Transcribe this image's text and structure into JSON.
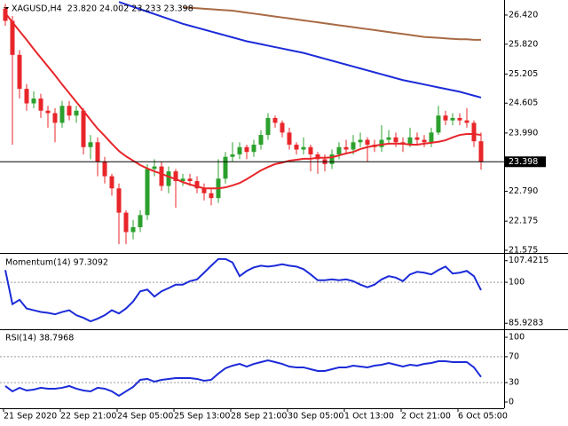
{
  "chart_data": [
    {
      "type": "candlestick",
      "title": "XAGUSD,H4  23.820 24.002 23.233 23.398",
      "categories": [
        "21 Sep 2020",
        null,
        null,
        null,
        null,
        null,
        null,
        null,
        "22 Sep 21:00",
        null,
        null,
        null,
        null,
        null,
        null,
        null,
        "24 Sep 05:00",
        null,
        null,
        null,
        null,
        null,
        null,
        null,
        "25 Sep 13:00",
        null,
        null,
        null,
        null,
        null,
        null,
        null,
        "28 Sep 21:00",
        null,
        null,
        null,
        null,
        null,
        null,
        null,
        "30 Sep 05:00",
        null,
        null,
        null,
        null,
        null,
        null,
        null,
        "1 Oct 13:00",
        null,
        null,
        null,
        null,
        null,
        null,
        null,
        "2 Oct 21:00",
        null,
        null,
        null,
        null,
        null,
        null,
        null,
        "6 Oct 05:00",
        null,
        null,
        null
      ],
      "open": [
        26.55,
        26.3,
        25.6,
        24.9,
        24.6,
        24.7,
        24.45,
        24.4,
        24.2,
        24.55,
        24.35,
        24.45,
        23.7,
        23.8,
        23.4,
        23.1,
        22.85,
        22.35,
        21.95,
        22.05,
        22.3,
        23.25,
        23.3,
        22.9,
        23.2,
        23.0,
        23.05,
        23.0,
        22.85,
        22.75,
        22.65,
        23.05,
        23.5,
        23.55,
        23.7,
        23.6,
        23.75,
        23.95,
        24.3,
        24.2,
        24.0,
        23.75,
        23.65,
        23.7,
        23.55,
        23.45,
        23.35,
        23.55,
        23.7,
        23.65,
        23.8,
        23.85,
        23.75,
        23.7,
        23.85,
        23.9,
        23.8,
        23.75,
        23.9,
        23.85,
        23.8,
        24.0,
        24.35,
        24.25,
        24.3,
        24.25,
        24.2,
        23.82
      ],
      "high": [
        26.65,
        26.4,
        25.7,
        25.0,
        24.85,
        24.8,
        24.55,
        24.5,
        24.65,
        24.65,
        24.55,
        24.5,
        23.95,
        23.9,
        23.5,
        23.15,
        22.95,
        22.4,
        22.2,
        22.4,
        23.35,
        23.45,
        23.4,
        23.3,
        23.25,
        23.15,
        23.15,
        23.1,
        22.95,
        22.85,
        23.45,
        23.6,
        23.8,
        23.8,
        23.75,
        23.85,
        24.05,
        24.4,
        24.35,
        24.25,
        24.1,
        23.8,
        23.9,
        23.75,
        23.6,
        23.55,
        23.65,
        23.8,
        23.85,
        23.95,
        24.0,
        23.9,
        23.85,
        24.15,
        24.05,
        24.0,
        23.9,
        24.1,
        24.0,
        23.95,
        24.1,
        24.55,
        24.45,
        24.4,
        24.4,
        24.5,
        24.25,
        24.002
      ],
      "low": [
        26.2,
        23.75,
        24.7,
        24.45,
        24.5,
        24.3,
        24.1,
        23.8,
        24.1,
        24.25,
        24.2,
        23.55,
        23.45,
        23.1,
        22.95,
        22.7,
        21.7,
        21.7,
        21.8,
        21.95,
        22.2,
        23.1,
        22.8,
        22.75,
        22.45,
        22.9,
        22.9,
        22.75,
        22.6,
        22.5,
        22.55,
        22.95,
        23.4,
        23.45,
        23.45,
        23.5,
        23.65,
        23.85,
        24.1,
        23.9,
        23.65,
        23.55,
        23.55,
        23.2,
        23.15,
        23.2,
        23.25,
        23.45,
        23.55,
        23.55,
        23.7,
        23.4,
        23.6,
        23.6,
        23.75,
        23.7,
        23.6,
        23.7,
        23.75,
        23.7,
        23.7,
        23.95,
        24.15,
        24.15,
        24.15,
        24.1,
        23.7,
        23.233
      ],
      "close": [
        26.3,
        25.6,
        24.9,
        24.6,
        24.7,
        24.45,
        24.4,
        24.2,
        24.55,
        24.35,
        24.45,
        23.7,
        23.8,
        23.4,
        23.1,
        22.85,
        22.35,
        21.95,
        22.05,
        22.3,
        23.25,
        23.3,
        22.9,
        23.2,
        23.0,
        23.05,
        23.0,
        22.85,
        22.75,
        22.65,
        23.05,
        23.5,
        23.55,
        23.7,
        23.6,
        23.75,
        23.95,
        24.3,
        24.2,
        24.0,
        23.75,
        23.65,
        23.7,
        23.55,
        23.45,
        23.35,
        23.55,
        23.7,
        23.65,
        23.8,
        23.85,
        23.75,
        23.7,
        23.85,
        23.9,
        23.8,
        23.75,
        23.9,
        23.85,
        23.8,
        24.0,
        24.35,
        24.25,
        24.3,
        24.25,
        24.2,
        23.82,
        23.398
      ],
      "up_color": "#2ca02c",
      "down_color": "#e8262a",
      "series": [
        {
          "color": "#e8262a",
          "values": [
            26.46,
            26.27,
            26.09,
            25.91,
            25.72,
            25.54,
            25.36,
            25.18,
            24.99,
            24.81,
            24.63,
            24.45,
            24.26,
            24.08,
            23.93,
            23.77,
            23.62,
            23.51,
            23.42,
            23.33,
            23.26,
            23.2,
            23.15,
            23.09,
            23.04,
            22.98,
            22.93,
            22.89,
            22.85,
            22.85,
            22.85,
            22.87,
            22.91,
            22.96,
            23.04,
            23.13,
            23.22,
            23.29,
            23.35,
            23.38,
            23.42,
            23.44,
            23.46,
            23.46,
            23.48,
            23.48,
            23.49,
            23.53,
            23.57,
            23.6,
            23.66,
            23.7,
            23.73,
            23.75,
            23.77,
            23.77,
            23.77,
            23.75,
            23.75,
            23.77,
            23.79,
            23.81,
            23.84,
            23.9,
            23.95,
            23.97,
            23.97,
            23.95
          ]
        },
        {
          "color": "#1c2bd8",
          "values": [
            null,
            null,
            null,
            null,
            null,
            null,
            null,
            null,
            null,
            null,
            null,
            null,
            null,
            null,
            null,
            null,
            26.69,
            26.64,
            26.59,
            26.54,
            26.49,
            26.44,
            26.39,
            26.34,
            26.29,
            26.24,
            26.2,
            26.16,
            26.12,
            26.08,
            26.04,
            26.0,
            25.96,
            25.92,
            25.88,
            25.85,
            25.82,
            25.79,
            25.76,
            25.73,
            25.7,
            25.67,
            25.64,
            25.6,
            25.56,
            25.52,
            25.48,
            25.44,
            25.4,
            25.36,
            25.32,
            25.28,
            25.24,
            25.2,
            25.16,
            25.12,
            25.08,
            25.05,
            25.02,
            24.99,
            24.96,
            24.93,
            24.9,
            24.87,
            24.84,
            24.8,
            24.76,
            24.72
          ]
        },
        {
          "color": "#a86a44",
          "values": [
            null,
            null,
            null,
            null,
            null,
            null,
            null,
            null,
            null,
            null,
            null,
            null,
            null,
            null,
            null,
            null,
            null,
            null,
            null,
            null,
            null,
            null,
            null,
            null,
            null,
            26.58,
            26.57,
            26.56,
            26.55,
            26.54,
            26.53,
            26.52,
            26.51,
            26.49,
            26.47,
            26.45,
            26.43,
            26.41,
            26.39,
            26.37,
            26.35,
            26.33,
            26.31,
            26.29,
            26.27,
            26.25,
            26.23,
            26.21,
            26.19,
            26.17,
            26.15,
            26.13,
            26.11,
            26.09,
            26.07,
            26.05,
            26.03,
            26.01,
            25.99,
            25.97,
            25.96,
            25.95,
            25.94,
            25.93,
            25.92,
            25.92,
            25.91,
            25.91
          ]
        }
      ],
      "ylim": [
        21.52,
        26.73
      ],
      "yticks": [
        {
          "value": 26.42,
          "label": "26.420"
        },
        {
          "value": 25.82,
          "label": "25.820"
        },
        25.205,
        24.605,
        {
          "value": 23.99,
          "label": "23.990"
        },
        {
          "value": 22.79,
          "label": "22.790"
        },
        22.175,
        21.575
      ]
    },
    {
      "type": "line",
      "title": "Momentum(14) 97.3092",
      "color": "#1c2bd8",
      "values": [
        104.2,
        92.5,
        94.0,
        91.0,
        90.4,
        89.8,
        89.5,
        89.0,
        89.8,
        90.4,
        88.7,
        87.8,
        86.6,
        87.5,
        88.7,
        90.4,
        89.3,
        91.0,
        93.4,
        96.9,
        97.5,
        95.1,
        96.9,
        98.0,
        99.2,
        99.2,
        100.4,
        101.0,
        103.3,
        105.7,
        108.0,
        108.0,
        106.8,
        102.1,
        103.9,
        105.1,
        105.7,
        105.4,
        105.7,
        106.2,
        105.7,
        105.4,
        104.5,
        102.7,
        100.7,
        100.7,
        101.0,
        100.7,
        101.0,
        100.4,
        99.2,
        98.3,
        99.2,
        101.0,
        102.1,
        101.6,
        100.4,
        102.7,
        103.6,
        103.3,
        102.7,
        104.2,
        105.4,
        103.0,
        103.3,
        103.9,
        102.1,
        97.3092
      ],
      "ylim": [
        84.17,
        109.47
      ],
      "yticks": [
        107.4215,
        100,
        85.9283
      ],
      "levels": [
        100
      ]
    },
    {
      "type": "line",
      "title": "RSI(14) 38.7968",
      "color": "#1c2bd8",
      "values": [
        24.7,
        16.5,
        22.0,
        17.8,
        19.2,
        22.0,
        20.6,
        20.6,
        22.0,
        24.7,
        20.6,
        17.8,
        16.5,
        22.0,
        20.6,
        16.5,
        9.6,
        16.5,
        23.3,
        34.3,
        35.7,
        31.5,
        34.3,
        35.7,
        37.0,
        37.0,
        37.0,
        35.7,
        32.9,
        34.3,
        43.9,
        52.1,
        56.2,
        58.9,
        54.8,
        58.9,
        61.7,
        64.4,
        61.7,
        58.9,
        54.8,
        53.5,
        53.5,
        50.7,
        48.0,
        48.0,
        50.7,
        53.5,
        53.5,
        56.2,
        54.8,
        53.5,
        56.2,
        57.6,
        60.3,
        57.6,
        54.8,
        57.6,
        56.2,
        58.9,
        60.3,
        63.0,
        63.0,
        61.7,
        61.7,
        61.7,
        53.5,
        38.7968
      ],
      "ylim": [
        -9.6,
        111
      ],
      "yticks": [
        100,
        70,
        30,
        0
      ],
      "levels": [
        70,
        30
      ]
    }
  ]
}
